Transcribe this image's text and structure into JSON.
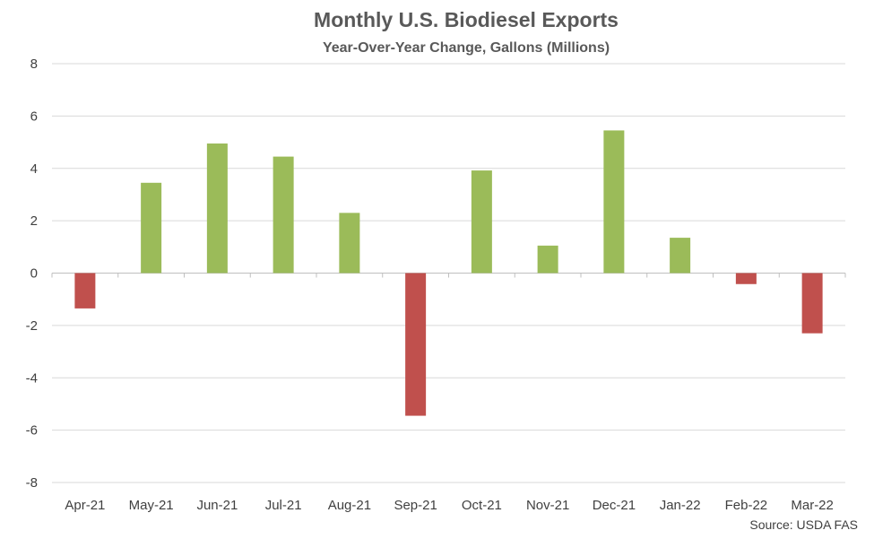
{
  "chart_data": {
    "type": "bar",
    "title": "Monthly U.S. Biodiesel Exports",
    "subtitle": "Year-Over-Year Change, Gallons (Millions)",
    "categories": [
      "Apr-21",
      "May-21",
      "Jun-21",
      "Jul-21",
      "Aug-21",
      "Sep-21",
      "Oct-21",
      "Nov-21",
      "Dec-21",
      "Jan-22",
      "Feb-22",
      "Mar-22"
    ],
    "values": [
      -1.35,
      3.45,
      4.95,
      4.45,
      2.3,
      -5.45,
      3.92,
      1.05,
      5.45,
      1.35,
      -0.42,
      -2.3
    ],
    "ylim": [
      -8,
      8
    ],
    "yticks": [
      8,
      6,
      4,
      2,
      0,
      -2,
      -4,
      -6,
      -8
    ],
    "grid": true,
    "legend": "none",
    "positive_color": "#9BBB59",
    "negative_color": "#C0504D",
    "grid_color": "#D9D9D9"
  },
  "source": "Source: USDA FAS"
}
